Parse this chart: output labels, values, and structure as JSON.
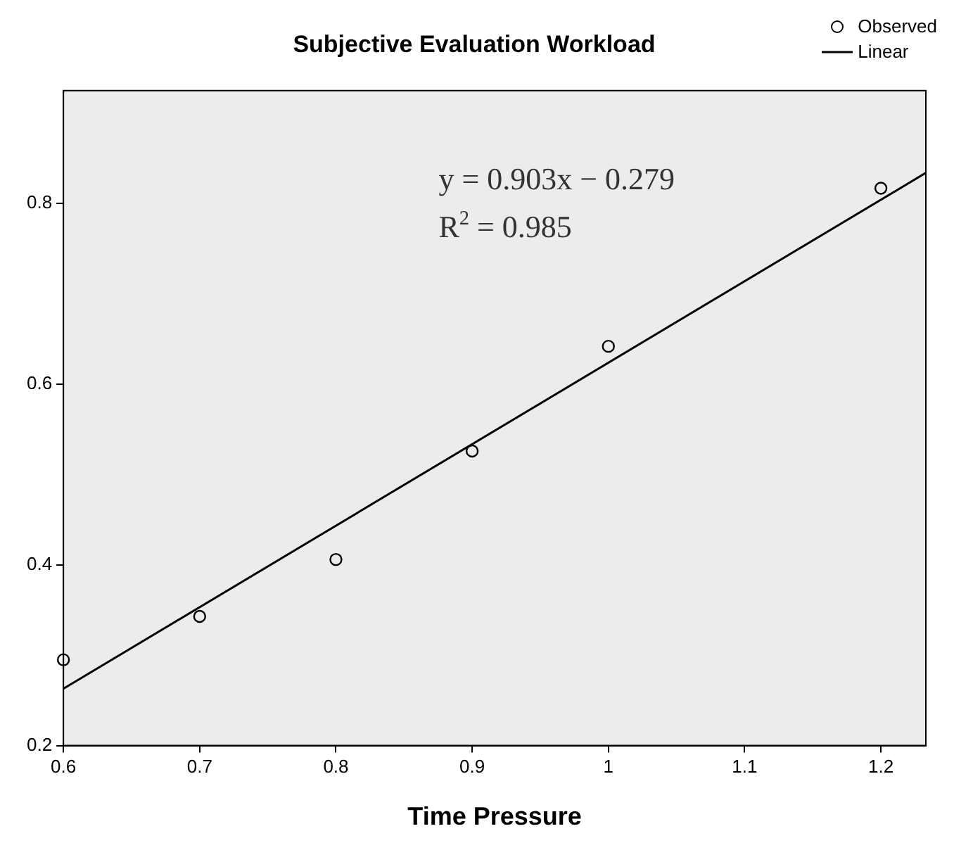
{
  "chart_data": {
    "type": "scatter",
    "title": "Subjective Evaluation Workload",
    "xlabel": "Time Pressure",
    "x": [
      0.6,
      0.7,
      0.8,
      0.9,
      1.0,
      1.2
    ],
    "series": [
      {
        "name": "Observed",
        "type": "scatter",
        "color": "#000000",
        "marker": "circle",
        "values": [
          0.295,
          0.343,
          0.406,
          0.526,
          0.642,
          0.817
        ]
      },
      {
        "name": "Linear",
        "type": "line",
        "color": "#000000",
        "marker": "none",
        "line_style": "solid",
        "x": [
          0.6,
          1.233
        ],
        "values": [
          0.263,
          0.834
        ]
      }
    ],
    "xlim": [
      0.6,
      1.233
    ],
    "xticks": [
      0.6,
      0.7,
      0.8,
      0.9,
      1,
      1.1,
      1.2
    ],
    "ylim": [
      0.2,
      0.925
    ],
    "yticks": [
      0.2,
      0.4,
      0.6,
      0.8
    ],
    "annotations": [
      "y = 0.903x − 0.279",
      "R$^{2}$ = 0.985"
    ],
    "grid": false,
    "legend": "top right"
  }
}
